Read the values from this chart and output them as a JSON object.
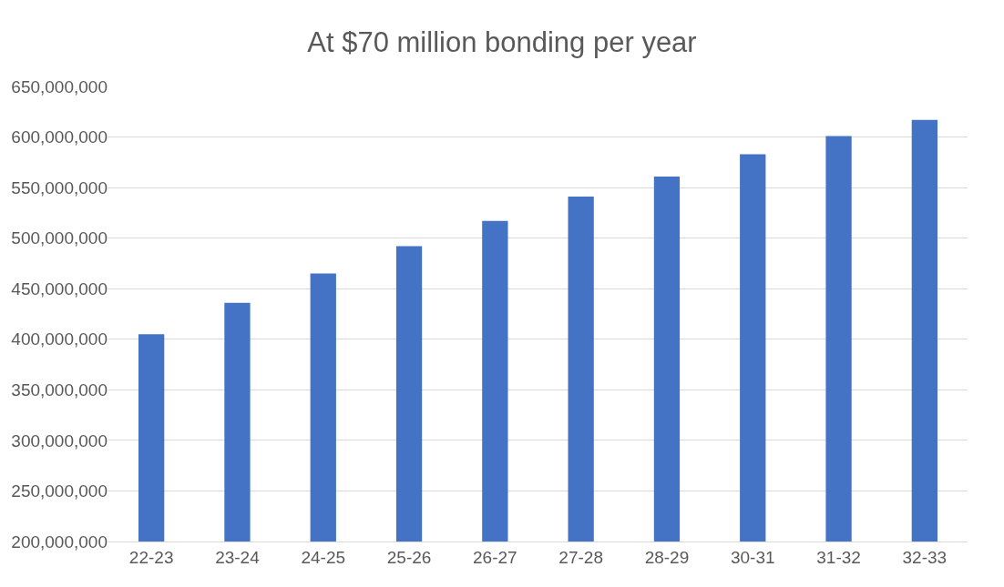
{
  "chart_data": {
    "type": "bar",
    "title": "At $70 million bonding per year",
    "categories": [
      "22-23",
      "23-24",
      "24-25",
      "25-26",
      "26-27",
      "27-28",
      "28-29",
      "30-31",
      "31-32",
      "32-33"
    ],
    "values": [
      405000000,
      436000000,
      465000000,
      492000000,
      517000000,
      541000000,
      561000000,
      583000000,
      601000000,
      617000000
    ],
    "color": "#4472c4",
    "ylim": [
      200000000,
      650000000
    ],
    "yticks": [
      {
        "value": 200000000,
        "label": "200,000,000"
      },
      {
        "value": 250000000,
        "label": "250,000,000"
      },
      {
        "value": 300000000,
        "label": "300,000,000"
      },
      {
        "value": 350000000,
        "label": "350,000,000"
      },
      {
        "value": 400000000,
        "label": "400,000,000"
      },
      {
        "value": 450000000,
        "label": "450,000,000"
      },
      {
        "value": 500000000,
        "label": "500,000,000"
      },
      {
        "value": 550000000,
        "label": "550,000,000"
      },
      {
        "value": 600000000,
        "label": "600,000,000"
      },
      {
        "value": 650000000,
        "label": "650,000,000"
      }
    ],
    "grid": "y"
  }
}
